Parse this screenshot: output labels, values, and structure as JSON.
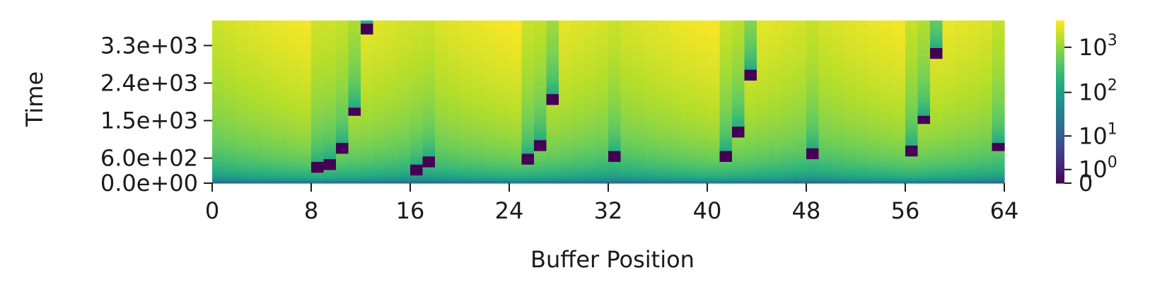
{
  "chart_data": {
    "type": "heatmap",
    "title": "",
    "xlabel": "Buffer Position",
    "ylabel": "Time",
    "xlim": [
      0,
      64
    ],
    "ylim": [
      0,
      3900
    ],
    "x_ticks": [
      0,
      8,
      16,
      24,
      32,
      40,
      48,
      56,
      64
    ],
    "x_tick_labels": [
      "0",
      "8",
      "16",
      "24",
      "32",
      "40",
      "48",
      "56",
      "64"
    ],
    "y_ticks": [
      0,
      600,
      1500,
      2400,
      3300
    ],
    "y_tick_labels": [
      "0.0e+00",
      "6.0e+02",
      "1.5e+03",
      "2.4e+03",
      "3.3e+03"
    ],
    "colorbar": {
      "scale": "symlog",
      "colormap": "viridis",
      "ticks": [
        0,
        1,
        10,
        100,
        1000
      ],
      "tick_labels": [
        "0",
        "10^0",
        "10^1",
        "10^2",
        "10^3"
      ],
      "max": 3900
    },
    "columns_summary": [
      {
        "position": 8,
        "reset_time": 250
      },
      {
        "position": 9,
        "reset_time": 350
      },
      {
        "position": 10,
        "reset_time": 700
      },
      {
        "position": 11,
        "reset_time": 1600
      },
      {
        "position": 12,
        "reset_time": 3600
      },
      {
        "position": 16,
        "reset_time": 200
      },
      {
        "position": 17,
        "reset_time": 400
      },
      {
        "position": 25,
        "reset_time": 450
      },
      {
        "position": 26,
        "reset_time": 800
      },
      {
        "position": 27,
        "reset_time": 1900
      },
      {
        "position": 32,
        "reset_time": 500
      },
      {
        "position": 41,
        "reset_time": 550
      },
      {
        "position": 42,
        "reset_time": 1100
      },
      {
        "position": 43,
        "reset_time": 2500
      },
      {
        "position": 48,
        "reset_time": 600
      },
      {
        "position": 56,
        "reset_time": 650
      },
      {
        "position": 57,
        "reset_time": 1400
      },
      {
        "position": 58,
        "reset_time": 3000
      },
      {
        "position": 63,
        "reset_time": 750
      }
    ]
  }
}
